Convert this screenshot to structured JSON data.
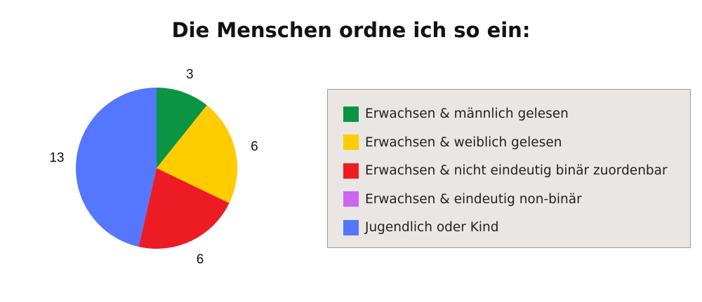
{
  "chart_data": {
    "type": "pie",
    "title": "Die Menschen ordne ich so ein:",
    "categories": [
      "Erwachsen & männlich gelesen",
      "Erwachsen & weiblich gelesen",
      "Erwachsen & nicht eindeutig binär zuordenbar",
      "Erwachsen & eindeutig non-binär",
      "Jugendlich oder Kind"
    ],
    "values": [
      3,
      6,
      6,
      0,
      13
    ],
    "data_labels": [
      "3",
      "6",
      "6",
      "",
      "13"
    ],
    "colors": [
      "#0b9444",
      "#ffcc00",
      "#ed1c24",
      "#cc66ee",
      "#5577ff"
    ],
    "legend_position": "right",
    "start_angle": "top, clockwise"
  }
}
